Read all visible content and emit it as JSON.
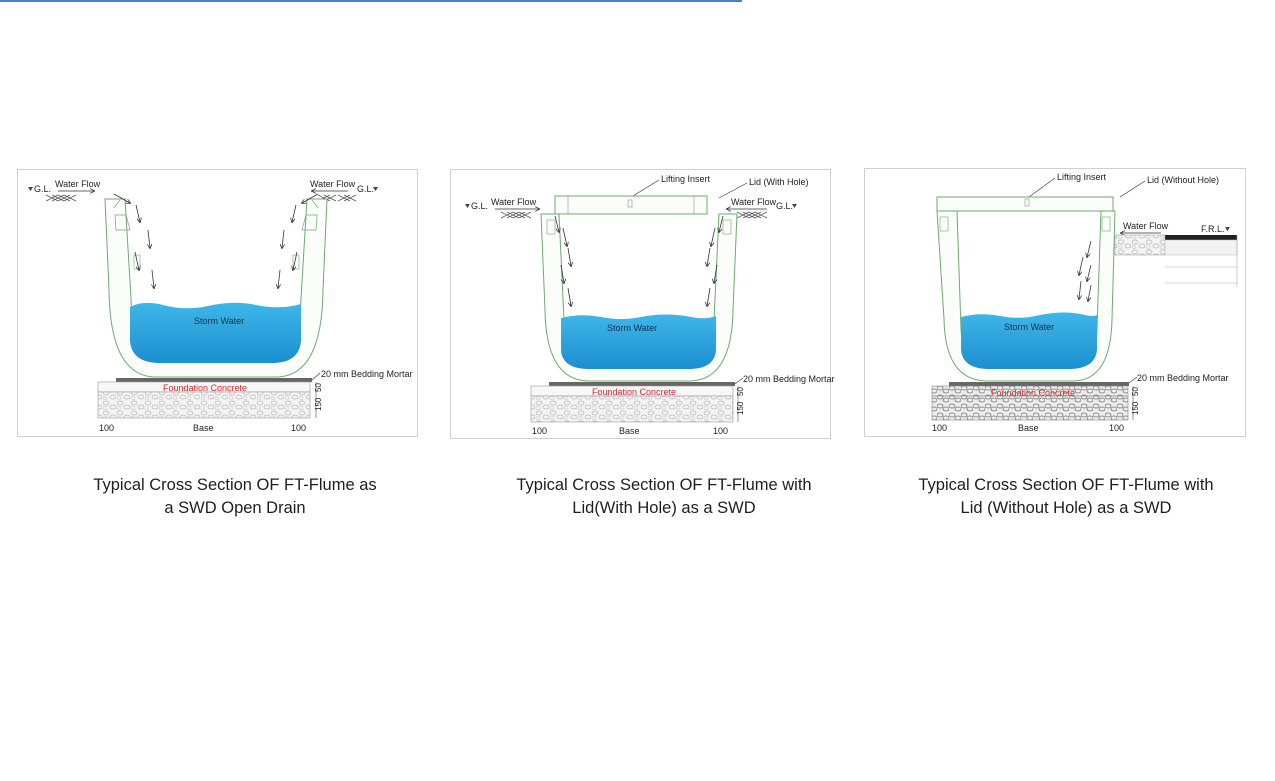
{
  "colors": {
    "water": "#29a9df",
    "water_dark": "#1b87c9",
    "flume_outline": "#6fa96f",
    "foundation_text": "#d42a2a",
    "accent_rule": "#4a7fd0"
  },
  "panels": [
    {
      "caption_line1": "Typical Cross Section OF FT-Flume as",
      "caption_line2": "a SWD Open Drain",
      "gl_left": "G.L.",
      "gl_right": "G.L.",
      "water_flow_left": "Water Flow",
      "water_flow_right": "Water Flow",
      "storm_water": "Storm Water",
      "bedding_mortar": "20 mm Bedding Mortar",
      "foundation_concrete": "Foundation Concrete",
      "dim_50": "50",
      "dim_150": "150",
      "dim_100_left": "100",
      "dim_base": "Base",
      "dim_100_right": "100"
    },
    {
      "caption_line1": "Typical Cross Section OF FT-Flume with",
      "caption_line2": "Lid(With Hole) as a SWD",
      "lifting_insert": "Lifting Insert",
      "lid": "Lid (With Hole)",
      "gl_left": "G.L.",
      "gl_right": "G.L.",
      "water_flow_left": "Water Flow",
      "water_flow_right": "Water Flow",
      "storm_water": "Storm Water",
      "bedding_mortar": "20 mm Bedding Mortar",
      "foundation_concrete": "Foundation Concrete",
      "dim_50": "50",
      "dim_150": "150",
      "dim_100_left": "100",
      "dim_base": "Base",
      "dim_100_right": "100"
    },
    {
      "caption_line1": "Typical Cross Section OF FT-Flume with",
      "caption_line2": "Lid (Without Hole) as a SWD",
      "lifting_insert": "Lifting Insert",
      "lid": "Lid (Without Hole)",
      "water_flow_right": "Water Flow",
      "frl": "F.R.L.",
      "storm_water": "Storm Water",
      "bedding_mortar": "20 mm Bedding Mortar",
      "foundation_concrete": "Foundation Concrete",
      "dim_50": "50",
      "dim_150": "150",
      "dim_100_left": "100",
      "dim_base": "Base",
      "dim_100_right": "100"
    }
  ]
}
